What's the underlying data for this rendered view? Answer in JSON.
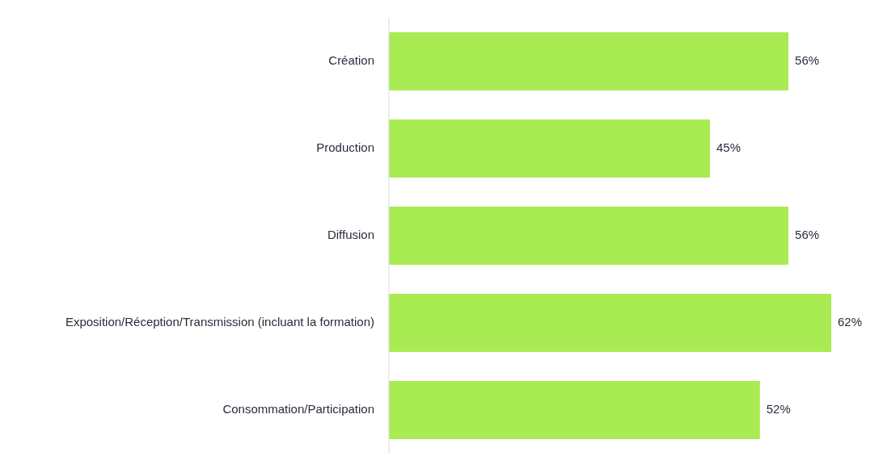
{
  "chart_data": {
    "type": "bar",
    "orientation": "horizontal",
    "categories": [
      "Création",
      "Production",
      "Diffusion",
      "Exposition/Réception/Transmission (incluant la formation)",
      "Consommation/Participation"
    ],
    "values": [
      56,
      45,
      56,
      62,
      52
    ],
    "value_labels": [
      "56%",
      "45%",
      "56%",
      "62%",
      "52%"
    ],
    "color": "#a9eb52"
  }
}
